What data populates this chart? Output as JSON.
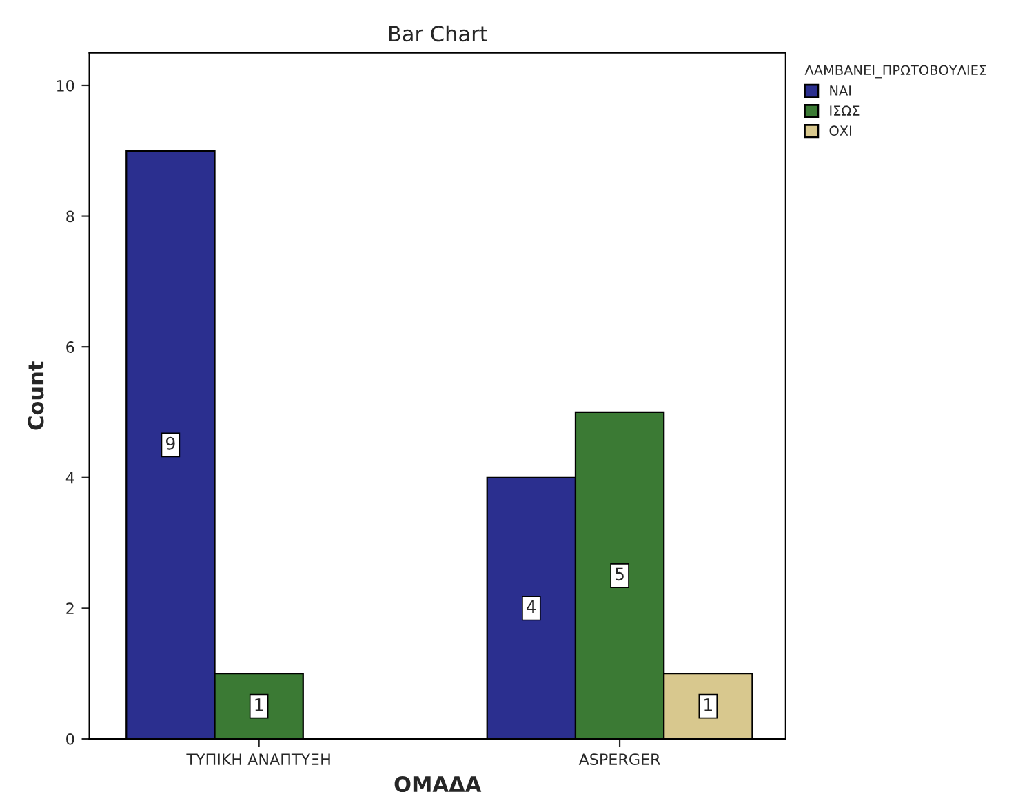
{
  "chart_data": {
    "type": "bar",
    "title": "Bar Chart",
    "xlabel": "ΟΜΑΔΑ",
    "ylabel": "Count",
    "legend_title": "ΛΑΜΒΑΝΕΙ_ΠΡΩΤΟΒΟΥΛΙΕΣ",
    "categories": [
      "ΤΥΠΙΚΗ ΑΝΑΠΤΥΞΗ",
      "ASPERGER"
    ],
    "series": [
      {
        "name": "ΝΑΙ",
        "color": "#2b2f8f",
        "values": [
          9,
          4
        ]
      },
      {
        "name": "ΙΣΩΣ",
        "color": "#3b7a34",
        "values": [
          1,
          5
        ]
      },
      {
        "name": "ΟΧΙ",
        "color": "#d8c88e",
        "values": [
          null,
          1
        ]
      }
    ],
    "ylim": [
      0,
      10.5
    ],
    "yticks": [
      0,
      2,
      4,
      6,
      8,
      10
    ],
    "grid": false,
    "legend": "top right",
    "data_labels": true
  }
}
